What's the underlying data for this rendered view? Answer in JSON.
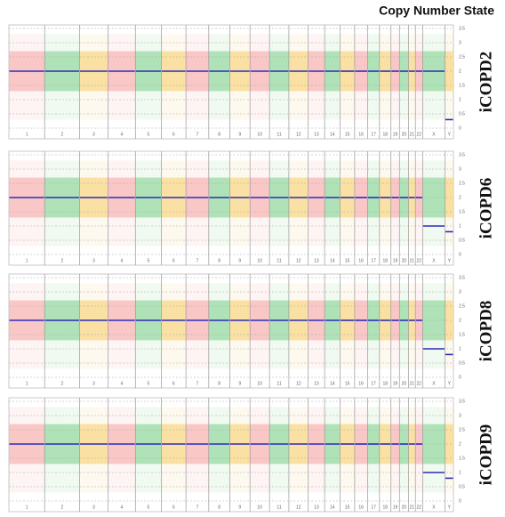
{
  "figure_title": "Copy Number State",
  "chart_data": [
    {
      "type": "line",
      "title": "iCOPD2",
      "color": "#2b2bb8",
      "band_colors": [
        "#f9b8b8",
        "#9adba4",
        "#f9d98a"
      ],
      "grid": true,
      "categories": [
        "1",
        "2",
        "3",
        "4",
        "5",
        "6",
        "7",
        "8",
        "9",
        "10",
        "11",
        "12",
        "13",
        "14",
        "15",
        "16",
        "17",
        "18",
        "19",
        "20",
        "21",
        "22",
        "X",
        "Y"
      ],
      "values": [
        2,
        2,
        2,
        2,
        2,
        2,
        2,
        2,
        2,
        2,
        2,
        2,
        2,
        2,
        2,
        2,
        2,
        2,
        2,
        2,
        2,
        2,
        2,
        0.3
      ],
      "ylim": [
        0,
        3.5
      ],
      "yticks": [
        0,
        0.5,
        1,
        1.5,
        2,
        2.5,
        3,
        3.5
      ]
    },
    {
      "type": "line",
      "title": "iCOPD6",
      "color": "#2b2bb8",
      "band_colors": [
        "#f9b8b8",
        "#9adba4",
        "#f9d98a"
      ],
      "grid": true,
      "categories": [
        "1",
        "2",
        "3",
        "4",
        "5",
        "6",
        "7",
        "8",
        "9",
        "10",
        "11",
        "12",
        "13",
        "14",
        "15",
        "16",
        "17",
        "18",
        "19",
        "20",
        "21",
        "22",
        "X",
        "Y"
      ],
      "values": [
        2,
        2,
        2,
        2,
        2,
        2,
        2,
        2,
        2,
        2,
        2,
        2,
        2,
        2,
        2,
        2,
        2,
        2,
        2,
        2,
        2,
        2,
        1,
        0.8
      ],
      "ylim": [
        0,
        3.5
      ],
      "yticks": [
        0,
        0.5,
        1,
        1.5,
        2,
        2.5,
        3,
        3.5
      ]
    },
    {
      "type": "line",
      "title": "iCOPD8",
      "color": "#2b2bb8",
      "band_colors": [
        "#f9b8b8",
        "#9adba4",
        "#f9d98a"
      ],
      "grid": true,
      "categories": [
        "1",
        "2",
        "3",
        "4",
        "5",
        "6",
        "7",
        "8",
        "9",
        "10",
        "11",
        "12",
        "13",
        "14",
        "15",
        "16",
        "17",
        "18",
        "19",
        "20",
        "21",
        "22",
        "X",
        "Y"
      ],
      "values": [
        2,
        2,
        2,
        2,
        2,
        2,
        2,
        2,
        2,
        2,
        2,
        2,
        2,
        2,
        2,
        2,
        2,
        2,
        2,
        2,
        2,
        2,
        1,
        0.8
      ],
      "ylim": [
        0,
        3.5
      ],
      "yticks": [
        0,
        0.5,
        1,
        1.5,
        2,
        2.5,
        3,
        3.5
      ]
    },
    {
      "type": "line",
      "title": "iCOPD9",
      "color": "#2b2bb8",
      "band_colors": [
        "#f9b8b8",
        "#9adba4",
        "#f9d98a"
      ],
      "grid": true,
      "categories": [
        "1",
        "2",
        "3",
        "4",
        "5",
        "6",
        "7",
        "8",
        "9",
        "10",
        "11",
        "12",
        "13",
        "14",
        "15",
        "16",
        "17",
        "18",
        "19",
        "20",
        "21",
        "22",
        "X",
        "Y"
      ],
      "values": [
        2,
        2,
        2,
        2,
        2,
        2,
        2,
        2,
        2,
        2,
        2,
        2,
        2,
        2,
        2,
        2,
        2,
        2,
        2,
        2,
        2,
        2,
        1,
        0.8
      ],
      "ylim": [
        0,
        3.5
      ],
      "yticks": [
        0,
        0.5,
        1,
        1.5,
        2,
        2.5,
        3,
        3.5
      ]
    }
  ]
}
